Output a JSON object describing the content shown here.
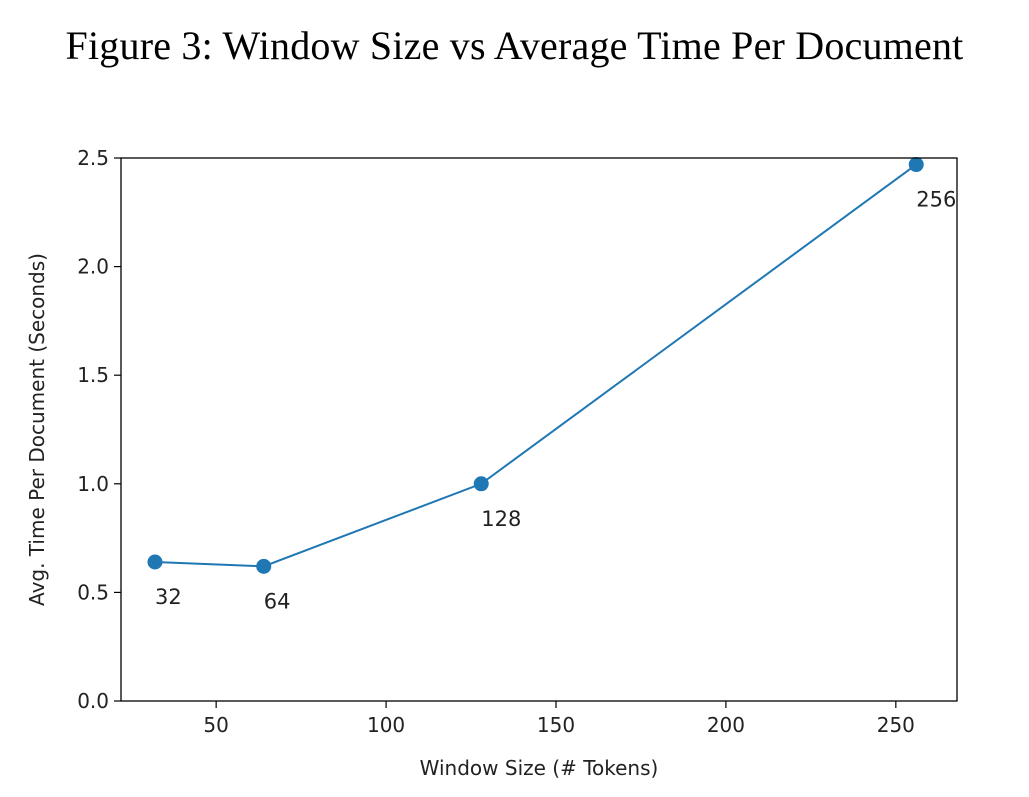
{
  "figure": {
    "title": "Figure 3: Window Size vs Average Time Per Document"
  },
  "chart_data": {
    "type": "line",
    "title": "Figure 3: Window Size vs Average Time Per Document",
    "xlabel": "Window Size (# Tokens)",
    "ylabel": "Avg. Time Per Document (Seconds)",
    "xlim": [
      22,
      268
    ],
    "ylim": [
      0.0,
      2.5
    ],
    "xticks": [
      50,
      100,
      150,
      200,
      250
    ],
    "yticks": [
      0.0,
      0.5,
      1.0,
      1.5,
      2.0,
      2.5
    ],
    "xtick_labels": [
      "50",
      "100",
      "150",
      "200",
      "250"
    ],
    "ytick_labels": [
      "0.0",
      "0.5",
      "1.0",
      "1.5",
      "2.0",
      "2.5"
    ],
    "grid": false,
    "series": [
      {
        "color": "#1f77b4",
        "marker": "circle",
        "points": [
          {
            "x": 32,
            "y": 0.64,
            "label": "32"
          },
          {
            "x": 64,
            "y": 0.62,
            "label": "64"
          },
          {
            "x": 128,
            "y": 1.0,
            "label": "128"
          },
          {
            "x": 256,
            "y": 2.47,
            "label": "256"
          }
        ]
      }
    ]
  }
}
